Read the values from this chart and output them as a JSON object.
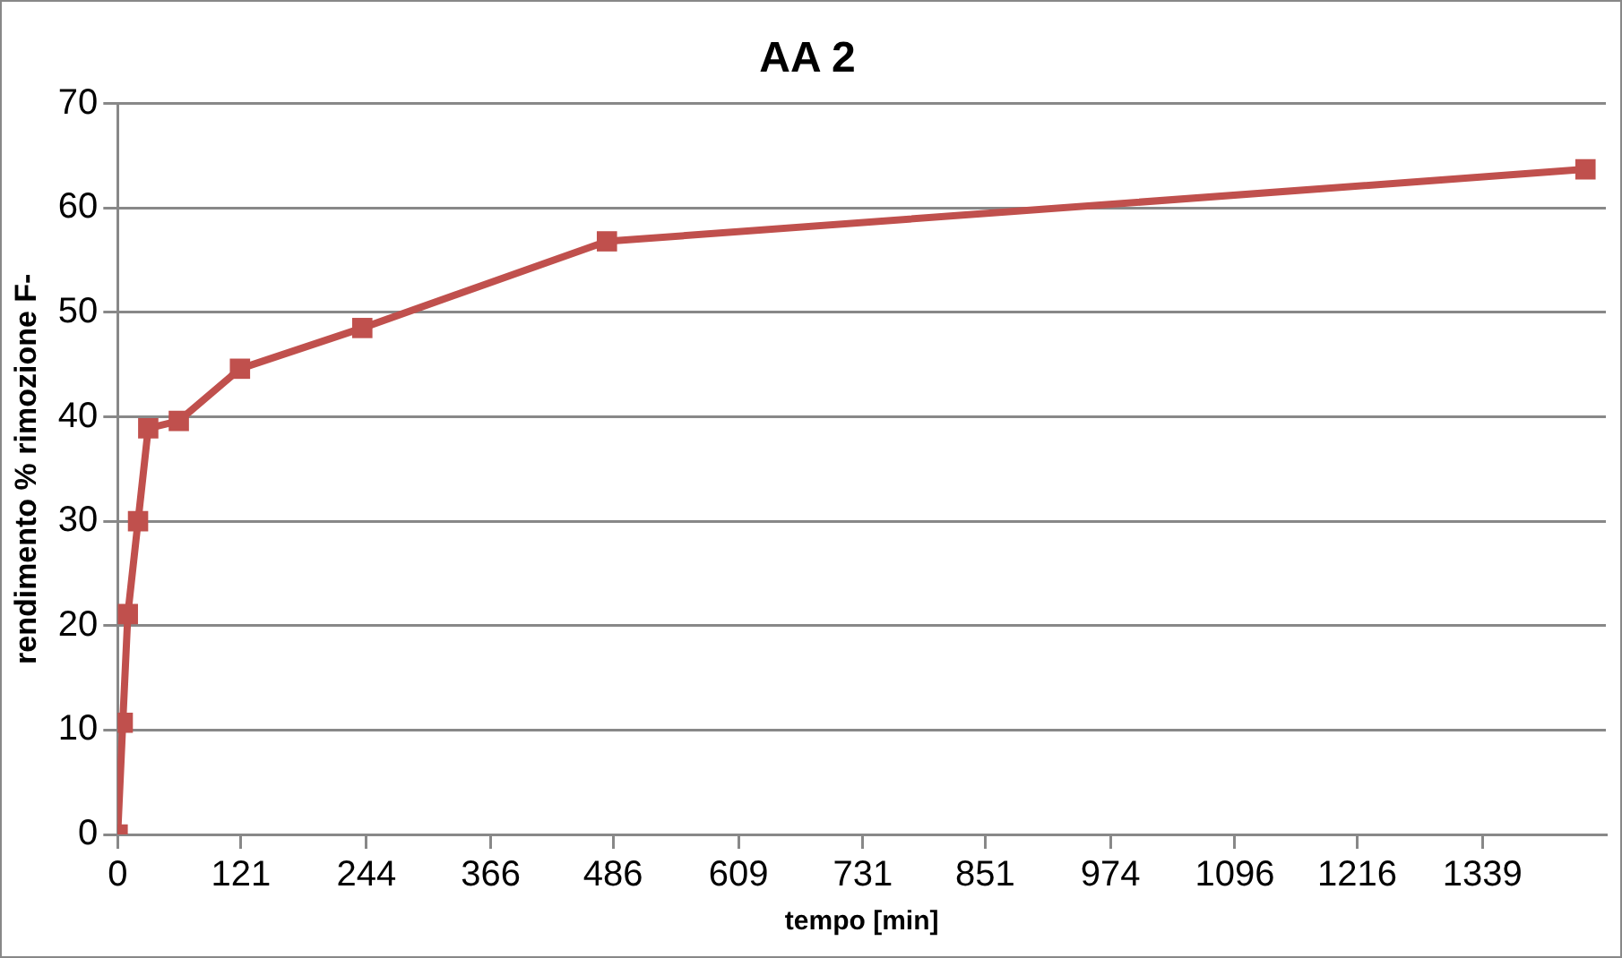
{
  "chart_data": {
    "type": "line",
    "title": "AA 2",
    "xlabel": "tempo [min]",
    "ylabel": "rendimento % rimozione F-",
    "x": [
      0,
      5,
      10,
      20,
      30,
      60,
      120,
      240,
      480,
      1440
    ],
    "series": [
      {
        "color": "#c0504d",
        "values": [
          0,
          10.7,
          21.1,
          30,
          38.9,
          39.6,
          44.6,
          48.5,
          56.8,
          63.7
        ]
      }
    ],
    "xlim": [
      0,
      1460
    ],
    "xticks": [
      0,
      121,
      244,
      366,
      486,
      609,
      731,
      851,
      974,
      1096,
      1216,
      1339
    ],
    "ylim": [
      0,
      70
    ],
    "yticks": [
      0,
      10,
      20,
      30,
      40,
      50,
      60,
      70
    ],
    "grid": "y",
    "legend": false,
    "marker": "square",
    "line_style": "solid"
  }
}
